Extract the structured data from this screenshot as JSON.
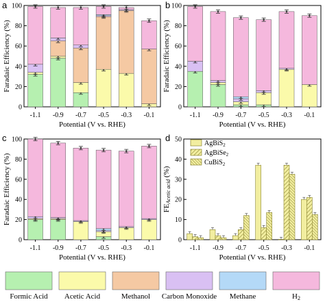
{
  "colors": {
    "formic": "#b6f0b0",
    "acetic": "#fbfaaa",
    "methanol": "#f5c9a3",
    "co": "#d9c0f3",
    "methane": "#b4d9f7",
    "h2": "#f5b8dd",
    "d_fill": "#f2eea0",
    "d_stroke": "#8a8430"
  },
  "legend": [
    {
      "key": "formic",
      "label": "Formic Acid"
    },
    {
      "key": "acetic",
      "label": "Acetic Acid"
    },
    {
      "key": "methanol",
      "label": "Methanol"
    },
    {
      "key": "co",
      "label": "Carbon Monoxide"
    },
    {
      "key": "methane",
      "label": "Methane"
    },
    {
      "key": "h2",
      "label": "H"
    }
  ],
  "chart_data": [
    {
      "panel": "a",
      "type": "bar",
      "stacked": true,
      "categories": [
        "-1.1",
        "-0.9",
        "-0.7",
        "-0.5",
        "-0.3",
        "-0.1"
      ],
      "xlabel": "Potential (V vs. RHE)",
      "ylabel": "Faradaic Efficiency (%)",
      "ylim": [
        0,
        100
      ],
      "yticks": [
        0,
        20,
        40,
        60,
        80,
        100
      ],
      "series": [
        {
          "name": "Formic Acid",
          "key": "formic",
          "values": [
            32,
            48,
            14,
            0,
            0,
            0
          ]
        },
        {
          "name": "Acetic Acid",
          "key": "acetic",
          "values": [
            2,
            2,
            10,
            37,
            33,
            3
          ]
        },
        {
          "name": "Methanol",
          "key": "methanol",
          "values": [
            0,
            15,
            34,
            52,
            62,
            54
          ]
        },
        {
          "name": "Carbon Monoxide",
          "key": "co",
          "values": [
            8,
            3,
            3,
            1,
            1,
            0
          ]
        },
        {
          "name": "Methane",
          "key": "methane",
          "values": [
            0,
            0,
            0,
            1,
            0,
            0
          ]
        },
        {
          "name": "H2",
          "key": "h2",
          "values": [
            57,
            30,
            37,
            8,
            2,
            28
          ]
        }
      ]
    },
    {
      "panel": "b",
      "type": "bar",
      "stacked": true,
      "categories": [
        "-1.1",
        "-0.9",
        "-0.7",
        "-0.5",
        "-0.3",
        "-0.1"
      ],
      "xlabel": "Potential (V vs. RHE)",
      "ylabel": "Faradaic Efficiency (%)",
      "ylim": [
        0,
        100
      ],
      "yticks": [
        0,
        20,
        40,
        60,
        80,
        100
      ],
      "series": [
        {
          "name": "Formic Acid",
          "key": "formic",
          "values": [
            35,
            22,
            2,
            2,
            0,
            0
          ]
        },
        {
          "name": "Acetic Acid",
          "key": "acetic",
          "values": [
            0,
            2,
            3,
            12,
            37,
            22
          ]
        },
        {
          "name": "Methanol",
          "key": "methanol",
          "values": [
            0,
            0,
            0,
            0,
            0,
            0
          ]
        },
        {
          "name": "Carbon Monoxide",
          "key": "co",
          "values": [
            10,
            2,
            3,
            2,
            1,
            0
          ]
        },
        {
          "name": "Methane",
          "key": "methane",
          "values": [
            0,
            0,
            2,
            0,
            0,
            0
          ]
        },
        {
          "name": "H2",
          "key": "h2",
          "values": [
            54,
            68,
            78,
            70,
            56,
            68
          ]
        }
      ]
    },
    {
      "panel": "c",
      "type": "bar",
      "stacked": true,
      "categories": [
        "-1.1",
        "-0.9",
        "-0.7",
        "-0.5",
        "-0.3",
        "-0.1"
      ],
      "xlabel": "Potential (V vs. RHE)",
      "ylabel": "Faradaic Efficiency (%)",
      "ylim": [
        0,
        100
      ],
      "yticks": [
        0,
        20,
        40,
        60,
        80,
        100
      ],
      "series": [
        {
          "name": "Formic Acid",
          "key": "formic",
          "values": [
            20,
            20,
            0,
            3,
            0,
            0
          ]
        },
        {
          "name": "Acetic Acid",
          "key": "acetic",
          "values": [
            1,
            1,
            18,
            5,
            12,
            20
          ]
        },
        {
          "name": "Methanol",
          "key": "methanol",
          "values": [
            0,
            0,
            0,
            0,
            0,
            0
          ]
        },
        {
          "name": "Carbon Monoxide",
          "key": "co",
          "values": [
            2,
            1,
            1,
            1,
            1,
            1
          ]
        },
        {
          "name": "Methane",
          "key": "methane",
          "values": [
            0,
            0,
            0,
            2,
            0,
            0
          ]
        },
        {
          "name": "H2",
          "key": "h2",
          "values": [
            77,
            74,
            72,
            78,
            75,
            72
          ]
        }
      ]
    },
    {
      "panel": "d",
      "type": "bar",
      "grouped": true,
      "categories": [
        "-1.1",
        "-0.9",
        "-0.7",
        "-0.5",
        "-0.3",
        "-0.1"
      ],
      "xlabel": "Potential (V vs. RHE)",
      "ylabel_main": "FE",
      "ylabel_sub": "Acetic acid",
      "ylabel_unit": " (%)",
      "ylim": [
        0,
        50
      ],
      "yticks": [
        0,
        10,
        20,
        30,
        40,
        50
      ],
      "series": [
        {
          "name": "AgBiS",
          "sub": "2",
          "pattern": "solid",
          "values": [
            3,
            5,
            2,
            37,
            0.2,
            20
          ]
        },
        {
          "name": "AgBiSe",
          "sub": "2",
          "pattern": "hatch",
          "values": [
            1.5,
            2,
            5,
            6,
            37,
            21
          ]
        },
        {
          "name": "CuBiS",
          "sub": "2",
          "pattern": "dense",
          "values": [
            1,
            1,
            12,
            13.5,
            32.5,
            12.5
          ]
        }
      ]
    }
  ],
  "labels": {
    "a": "a",
    "b": "b",
    "c": "c",
    "d": "d",
    "h2_sub": "2"
  }
}
